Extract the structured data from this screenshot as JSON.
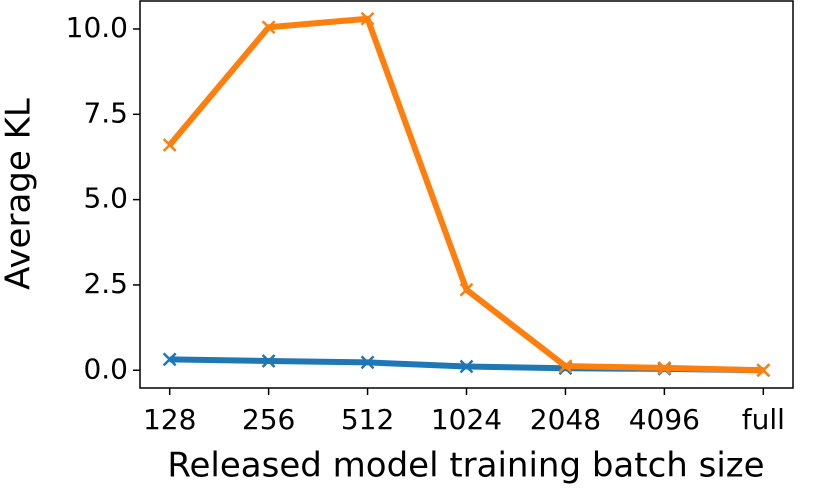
{
  "chart_data": {
    "type": "line",
    "x_label": "Released model training batch size",
    "y_label": "Average KL",
    "categories": [
      "128",
      "256",
      "512",
      "1024",
      "2048",
      "4096",
      "full"
    ],
    "series": [
      {
        "color": "#1f77b4",
        "values": [
          0.32,
          0.27,
          0.23,
          0.11,
          0.06,
          0.04,
          0.0
        ]
      },
      {
        "color": "#ff7f0e",
        "values": [
          6.6,
          10.05,
          10.3,
          2.36,
          0.12,
          0.07,
          0.0
        ]
      }
    ],
    "ylim": [
      -0.52,
      10.82
    ],
    "yticks": [
      {
        "value": 0,
        "label": "0.0"
      },
      2.5,
      {
        "value": 5,
        "label": "5.0"
      },
      7.5,
      {
        "value": 10,
        "label": "10.0"
      }
    ],
    "grid": false
  }
}
